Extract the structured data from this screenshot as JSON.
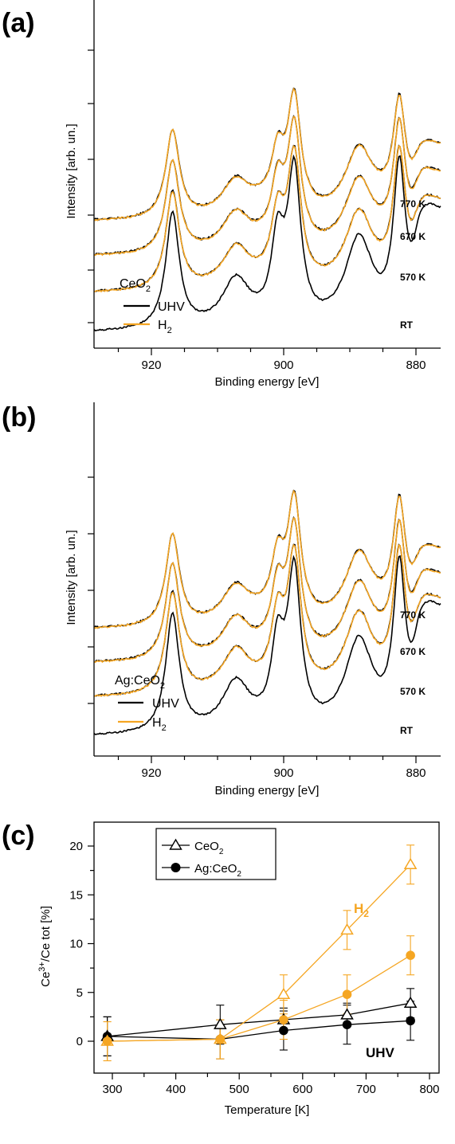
{
  "colors": {
    "uhv": "#000000",
    "h2": "#f5a623"
  },
  "panel_a": {
    "label": "(a)",
    "xlabel": "Binding energy [eV]",
    "ylabel": "Intensity [arb. un.]",
    "xticks": [
      "920",
      "900",
      "880"
    ],
    "temperatures": [
      "770 K",
      "670 K",
      "570 K",
      "RT"
    ],
    "legend": {
      "title": "CeO",
      "title_sub": "2",
      "uhv": "UHV",
      "h2": "H",
      "h2_sub": "2"
    }
  },
  "panel_b": {
    "label": "(b)",
    "xlabel": "Binding energy [eV]",
    "ylabel": "Intensity [arb. un.]",
    "xticks": [
      "920",
      "900",
      "880"
    ],
    "temperatures": [
      "770 K",
      "670 K",
      "570 K",
      "RT"
    ],
    "legend": {
      "title": "Ag:CeO",
      "title_sub": "2",
      "uhv": "UHV",
      "h2": "H",
      "h2_sub": "2"
    }
  },
  "panel_c": {
    "label": "(c)",
    "xlabel": "Temperature [K]",
    "ylabel": "Ce",
    "ylabel_sup": "3+",
    "ylabel_rest": "/Ce tot [%]",
    "legend": {
      "ceo2": "CeO",
      "ceo2_sub": "2",
      "agceo2": "Ag:CeO",
      "agceo2_sub": "2"
    },
    "annotation_h2": "H",
    "annotation_h2_sub": "2",
    "annotation_uhv": "UHV"
  },
  "chart_data": [
    {
      "type": "line",
      "panel": "a",
      "xlabel": "Binding energy [eV]",
      "ylabel": "Intensity [arb. un.]",
      "xlim": [
        930,
        870
      ],
      "xticks": [
        920,
        900,
        880
      ],
      "series_labels": [
        "UHV",
        "H2"
      ],
      "spectra_temperatures": [
        "RT",
        "570 K",
        "670 K",
        "770 K"
      ],
      "peaks_eV": [
        916.8,
        907.2,
        900.9,
        898.4,
        888.6,
        882.5
      ]
    },
    {
      "type": "line",
      "panel": "b",
      "xlabel": "Binding energy [eV]",
      "ylabel": "Intensity [arb. un.]",
      "xlim": [
        930,
        870
      ],
      "xticks": [
        920,
        900,
        880
      ],
      "series_labels": [
        "UHV",
        "H2"
      ],
      "spectra_temperatures": [
        "RT",
        "570 K",
        "670 K",
        "770 K"
      ],
      "peaks_eV": [
        916.8,
        907.2,
        900.9,
        898.4,
        888.6,
        882.5
      ]
    },
    {
      "type": "scatter",
      "panel": "c",
      "xlabel": "Temperature [K]",
      "ylabel": "Ce3+/Ce tot [%]",
      "xlim": [
        280,
        800
      ],
      "ylim": [
        -2,
        21
      ],
      "xticks": [
        300,
        400,
        500,
        600,
        700,
        800
      ],
      "yticks": [
        0,
        5,
        10,
        15,
        20
      ],
      "series": [
        {
          "name": "CeO2",
          "condition": "UHV",
          "marker": "triangle-open",
          "color": "#000000",
          "x": [
            292,
            470,
            570,
            670,
            770
          ],
          "y": [
            0.5,
            1.7,
            2.2,
            2.7,
            3.9
          ],
          "err": [
            2.0,
            2.0,
            1.2,
            1.2,
            1.5
          ]
        },
        {
          "name": "Ag:CeO2",
          "condition": "UHV",
          "marker": "circle-filled",
          "color": "#000000",
          "x": [
            292,
            470,
            570,
            670,
            770
          ],
          "y": [
            0.5,
            0.2,
            1.1,
            1.7,
            2.1
          ],
          "err": [
            2.0,
            2.0,
            2.0,
            2.0,
            2.0
          ]
        },
        {
          "name": "CeO2",
          "condition": "H2",
          "marker": "triangle-open",
          "color": "#f5a623",
          "x": [
            292,
            470,
            570,
            670,
            770
          ],
          "y": [
            0.0,
            0.2,
            4.8,
            11.4,
            18.1
          ],
          "err": [
            2.0,
            2.0,
            2.0,
            2.0,
            2.0
          ]
        },
        {
          "name": "Ag:CeO2",
          "condition": "H2",
          "marker": "circle-filled",
          "color": "#f5a623",
          "x": [
            292,
            470,
            570,
            670,
            770
          ],
          "y": [
            0.0,
            0.2,
            2.2,
            4.8,
            8.8
          ],
          "err": [
            2.0,
            2.0,
            2.0,
            2.0,
            2.0
          ]
        }
      ]
    }
  ]
}
